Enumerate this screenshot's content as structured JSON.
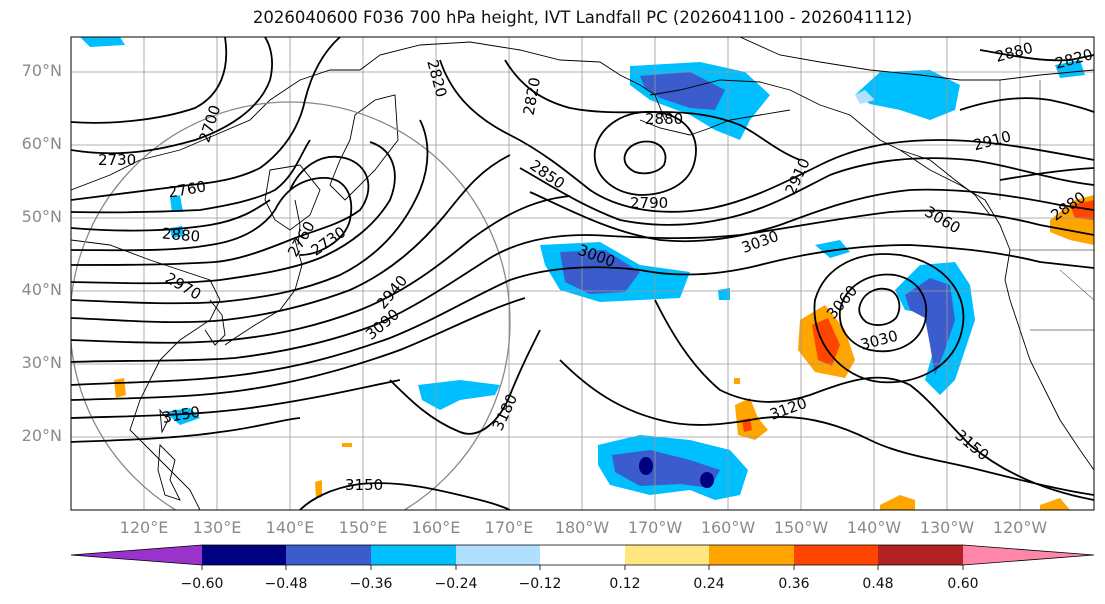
{
  "title": "2026040600 F036 700 hPa height, IVT Landfall PC (2026041100 - 2026041112)",
  "map": {
    "lat_labels": [
      "70°N",
      "60°N",
      "50°N",
      "40°N",
      "30°N",
      "20°N"
    ],
    "lon_labels": [
      "120°E",
      "130°E",
      "140°E",
      "150°E",
      "160°E",
      "170°E",
      "180°W",
      "170°W",
      "160°W",
      "150°W",
      "140°W",
      "130°W",
      "120°W"
    ],
    "contour_labels": [
      "2700",
      "2730",
      "2760",
      "2880",
      "2970",
      "2760",
      "2730",
      "2820",
      "2940",
      "3090",
      "2820",
      "2850",
      "2790",
      "3000",
      "2910",
      "3030",
      "3060",
      "3060",
      "3030",
      "3120",
      "3180",
      "3150",
      "3150",
      "3150",
      "2910",
      "2880",
      "2880",
      "2820",
      "2880"
    ],
    "colors": {
      "land_border": "#000000",
      "grid": "#999999",
      "circle": "#888888"
    }
  },
  "colorbar": {
    "ticks": [
      "−0.60",
      "−0.48",
      "−0.36",
      "−0.24",
      "−0.12",
      "0.12",
      "0.24",
      "0.36",
      "0.48",
      "0.60"
    ],
    "colors": [
      "#9933cc",
      "#000080",
      "#3a5ccc",
      "#00bfff",
      "#b0e0ff",
      "#ffffff",
      "#ffe680",
      "#ffa500",
      "#ff4500",
      "#b22222",
      "#ff88aa"
    ]
  }
}
